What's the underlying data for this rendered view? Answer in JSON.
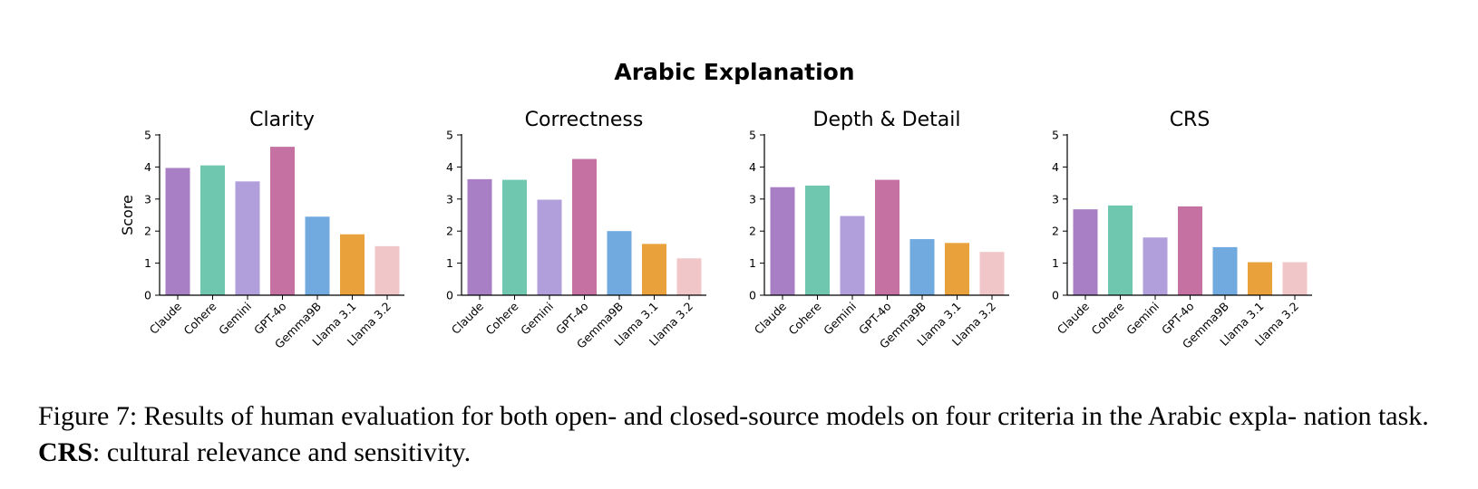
{
  "figure": {
    "suptitle": "Arabic Explanation",
    "caption_prefix": "Figure 7: Results of human evaluation for both open- and closed-source models on four criteria in the Arabic expla-",
    "caption_line2_prefix": "nation task.",
    "caption_bold": "CRS",
    "caption_suffix": ": cultural relevance and sensitivity."
  },
  "chart_data": [
    {
      "type": "bar",
      "title": "Clarity",
      "ylabel": "Score",
      "ylim": [
        0,
        5
      ],
      "yticks": [
        "0",
        "1",
        "2",
        "3",
        "4",
        "5"
      ],
      "categories": [
        "Claude",
        "Cohere",
        "Gemini",
        "GPT-4o",
        "Gemma9B",
        "Llama 3.1",
        "Llama 3.2"
      ],
      "values": [
        3.97,
        4.05,
        3.55,
        4.63,
        2.45,
        1.9,
        1.53
      ],
      "colors": [
        "#a87fc4",
        "#6fc7b0",
        "#b09fdb",
        "#c572a3",
        "#70aadf",
        "#e9a23b",
        "#f0c6c8"
      ]
    },
    {
      "type": "bar",
      "title": "Correctness",
      "ylabel": "",
      "ylim": [
        0,
        5
      ],
      "yticks": [
        "0",
        "1",
        "2",
        "3",
        "4",
        "5"
      ],
      "categories": [
        "Claude",
        "Cohere",
        "Gemini",
        "GPT-4o",
        "Gemma9B",
        "Llama 3.1",
        "Llama 3.2"
      ],
      "values": [
        3.62,
        3.6,
        2.98,
        4.25,
        2.0,
        1.6,
        1.15
      ],
      "colors": [
        "#a87fc4",
        "#6fc7b0",
        "#b09fdb",
        "#c572a3",
        "#70aadf",
        "#e9a23b",
        "#f0c6c8"
      ]
    },
    {
      "type": "bar",
      "title": "Depth & Detail",
      "ylabel": "",
      "ylim": [
        0,
        5
      ],
      "yticks": [
        "0",
        "1",
        "2",
        "3",
        "4",
        "5"
      ],
      "categories": [
        "Claude",
        "Cohere",
        "Gemini",
        "GPT-4o",
        "Gemma9B",
        "Llama 3.1",
        "Llama 3.2"
      ],
      "values": [
        3.37,
        3.42,
        2.47,
        3.6,
        1.75,
        1.63,
        1.35
      ],
      "colors": [
        "#a87fc4",
        "#6fc7b0",
        "#b09fdb",
        "#c572a3",
        "#70aadf",
        "#e9a23b",
        "#f0c6c8"
      ]
    },
    {
      "type": "bar",
      "title": "CRS",
      "ylabel": "",
      "ylim": [
        0,
        5
      ],
      "yticks": [
        "0",
        "1",
        "2",
        "3",
        "4",
        "5"
      ],
      "categories": [
        "Claude",
        "Cohere",
        "Gemini",
        "GPT-4o",
        "Gemma9B",
        "Llama 3.1",
        "Llama 3.2"
      ],
      "values": [
        2.68,
        2.8,
        1.8,
        2.77,
        1.5,
        1.03,
        1.03
      ],
      "colors": [
        "#a87fc4",
        "#6fc7b0",
        "#b09fdb",
        "#c572a3",
        "#70aadf",
        "#e9a23b",
        "#f0c6c8"
      ]
    }
  ]
}
